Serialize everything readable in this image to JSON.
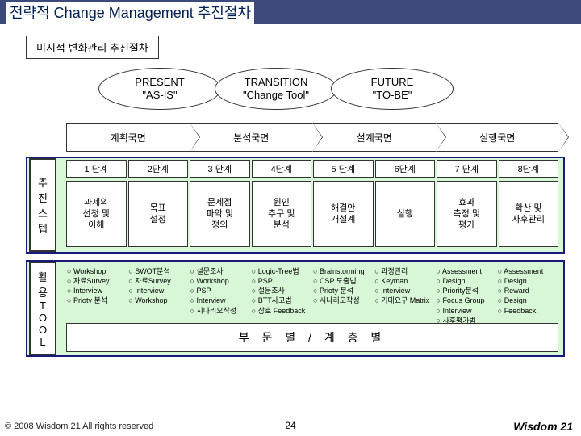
{
  "title": "전략적 Change Management 추진절차",
  "subtitle": "미시적 변화관리 추진절차",
  "ellipses": [
    {
      "line1": "PRESENT",
      "line2": "\"AS-IS\""
    },
    {
      "line1": "TRANSITION",
      "line2": "\"Change Tool\""
    },
    {
      "line1": "FUTURE",
      "line2": "\"TO-BE\""
    }
  ],
  "stages": [
    "계획국면",
    "분석국면",
    "설계국면",
    "실행국면"
  ],
  "vlabel_steps": [
    "추",
    "진",
    "스",
    "텝"
  ],
  "vlabel_tools": [
    "활",
    "용",
    "T",
    "O",
    "O",
    "L"
  ],
  "steps_row": [
    "1 단계",
    "2단계",
    "3 단계",
    "4단계",
    "5 단계",
    "6단계",
    "7 단계",
    "8단계"
  ],
  "steps_desc": [
    "과제의\n선정 및\n이해",
    "목표\n설정",
    "문제점\n파악 및\n정의",
    "원인\n추구 및\n분석",
    "해결안\n개설계",
    "실행",
    "효과\n측정 및\n평가",
    "확산 및\n사후관리"
  ],
  "tools": {
    "col1": [
      "Workshop",
      "자료Survey",
      "Interview",
      "Prioty 분석"
    ],
    "col2": [
      "SWOT분석",
      "자료Survey",
      "Interview",
      "Workshop"
    ],
    "col3": [
      "설문조사",
      "Workshop",
      "PSP",
      "Interview",
      "시나리오작성"
    ],
    "col4": [
      "Logic-Tree법",
      "PSP",
      "설문조사",
      "BTT사고법",
      "상호 Feedback"
    ],
    "col5": [
      "Brainstorming",
      "CSP 도출법",
      "Prioty 분석",
      "시나리오작성"
    ],
    "col6": [
      "과정관리",
      "Keyman",
      "Interview",
      "기대요구 Matrix"
    ],
    "col7": [
      "Assessment",
      "Design",
      "Priority분석",
      "Focus Group",
      "Interview",
      "사후평가법"
    ],
    "col8": [
      "Assessment",
      "Design",
      "Reward",
      "Design",
      "Feedback"
    ]
  },
  "dept_bar": "부   문   별   /   계   층   별",
  "footer": {
    "copyright": "© 2008 Wisdom 21 All rights reserved",
    "page": "24",
    "brand": "Wisdom 21"
  },
  "colors": {
    "title_bar": "#3b4a7a",
    "title_text": "#002152",
    "frame_border": "#1a1a7a",
    "frame_bg": "#d7f7d7"
  }
}
